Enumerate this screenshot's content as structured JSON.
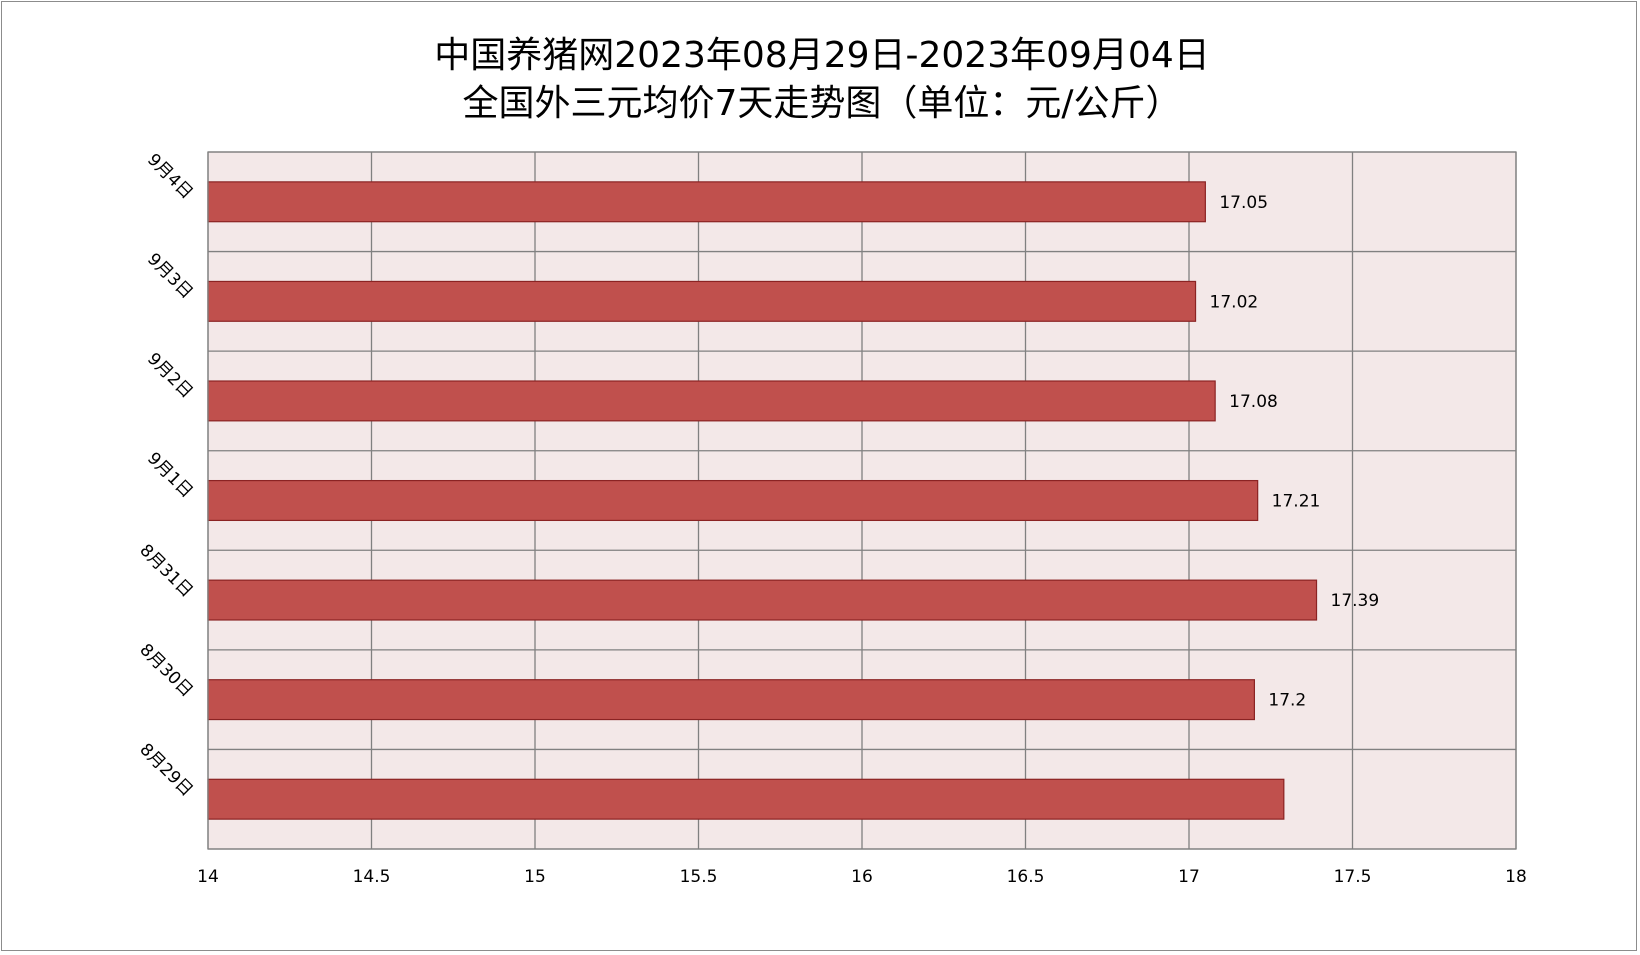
{
  "chart_data": {
    "type": "bar",
    "orientation": "horizontal",
    "title": "中国养猪网2023年08月29日-2023年09月04日",
    "subtitle": "全国外三元均价7天走势图（单位：元/公斤）",
    "categories": [
      "8月29日",
      "8月30日",
      "8月31日",
      "9月1日",
      "9月2日",
      "9月3日",
      "9月4日"
    ],
    "values": [
      17.29,
      17.2,
      17.39,
      17.21,
      17.08,
      17.02,
      17.05
    ],
    "data_labels": [
      "",
      "17.2",
      "17.39",
      "17.21",
      "17.08",
      "17.02",
      "17.05"
    ],
    "xlim": [
      14,
      18
    ],
    "x_ticks": [
      "14",
      "14.5",
      "15",
      "15.5",
      "16",
      "16.5",
      "17",
      "17.5",
      "18"
    ],
    "grid": true,
    "legend": "none",
    "colors": {
      "bar_fill": "#c0504d",
      "bar_stroke": "#8b2323",
      "plot_bg": "#f3e8e8",
      "grid": "#808080"
    }
  }
}
